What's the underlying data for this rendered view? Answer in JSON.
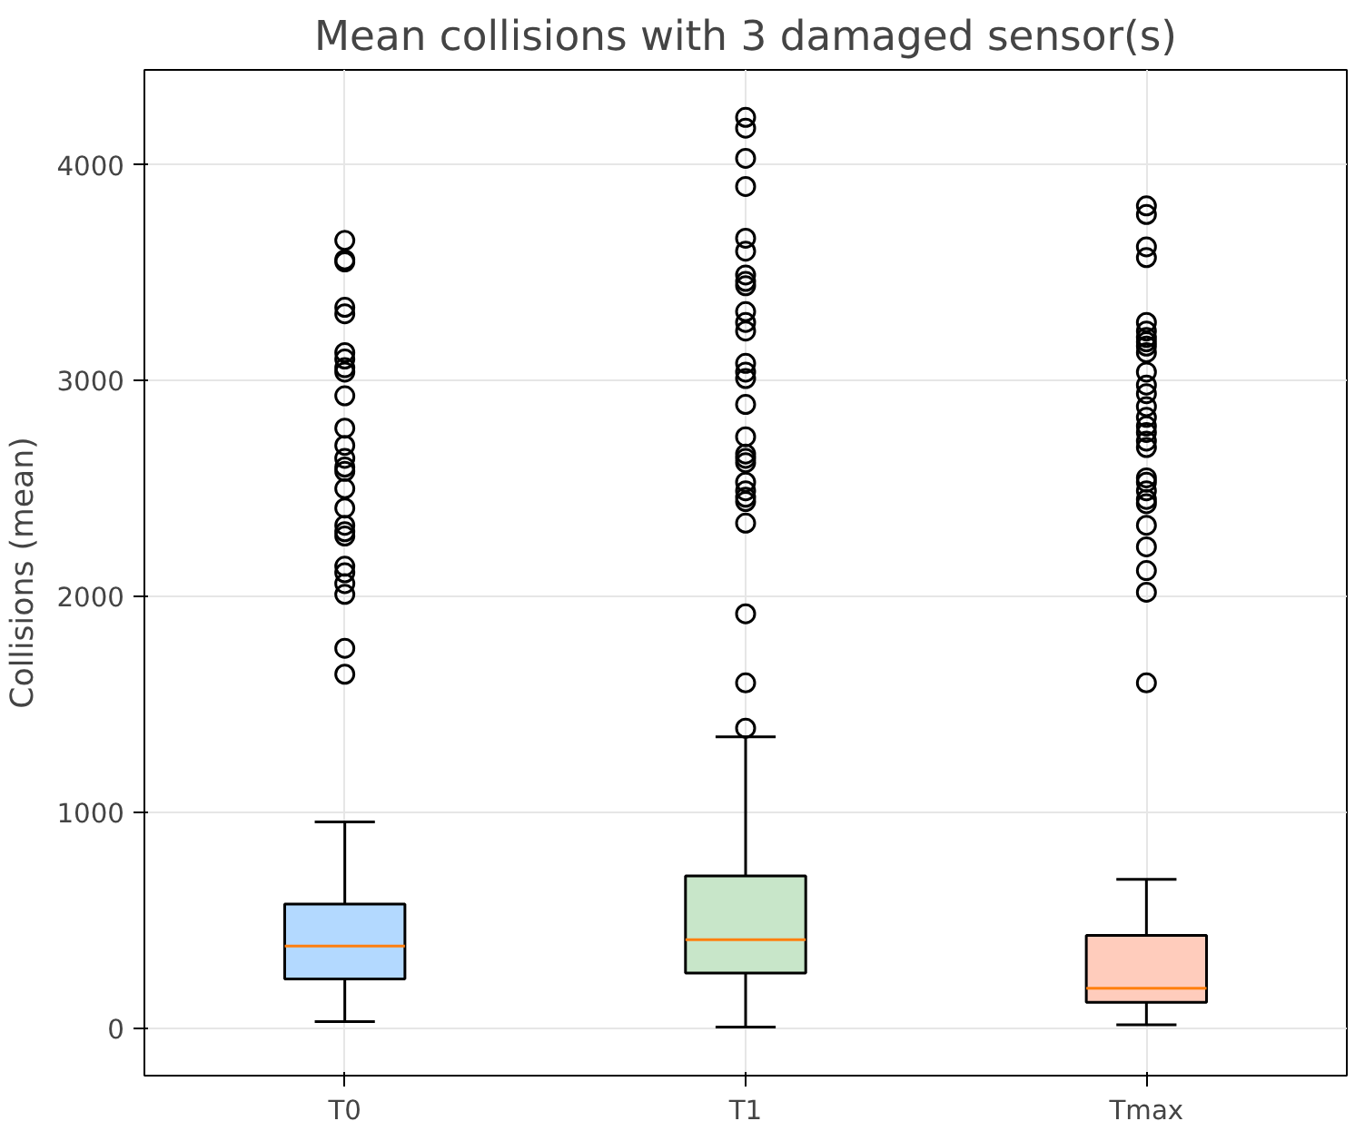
{
  "chart_data": {
    "type": "box",
    "title": "Mean collisions with 3 damaged sensor(s)",
    "ylabel": "Collisions (mean)",
    "categories": [
      "T0",
      "T1",
      "Tmax"
    ],
    "colors": [
      "#b3d9ff",
      "#c8e6c9",
      "#ffccbc"
    ],
    "boxes": [
      {
        "low": 30,
        "q1": 228,
        "median": 380,
        "q3": 575,
        "high": 955,
        "outliers": [
          3650,
          3560,
          3550,
          3340,
          3310,
          3130,
          3100,
          3060,
          3040,
          2930,
          2780,
          2700,
          2640,
          2600,
          2580,
          2500,
          2410,
          2330,
          2300,
          2280,
          2140,
          2110,
          2060,
          2010,
          1760,
          1640
        ]
      },
      {
        "low": 5,
        "q1": 255,
        "median": 410,
        "q3": 705,
        "high": 1350,
        "outliers": [
          4220,
          4170,
          4030,
          3900,
          3660,
          3600,
          3490,
          3460,
          3440,
          3320,
          3270,
          3230,
          3080,
          3040,
          3010,
          2890,
          2740,
          2660,
          2640,
          2620,
          2530,
          2490,
          2460,
          2440,
          2340,
          1920,
          1600,
          1390
        ]
      },
      {
        "low": 15,
        "q1": 120,
        "median": 185,
        "q3": 430,
        "high": 690,
        "outliers": [
          3810,
          3770,
          3620,
          3570,
          3270,
          3230,
          3200,
          3180,
          3160,
          3130,
          3040,
          2980,
          2940,
          2880,
          2830,
          2790,
          2760,
          2720,
          2690,
          2550,
          2530,
          2490,
          2450,
          2430,
          2330,
          2230,
          2120,
          2020,
          1600
        ]
      }
    ],
    "ylim": [
      -220,
      4440
    ],
    "yticks": [
      0,
      1000,
      2000,
      3000,
      4000
    ],
    "grid": true
  }
}
